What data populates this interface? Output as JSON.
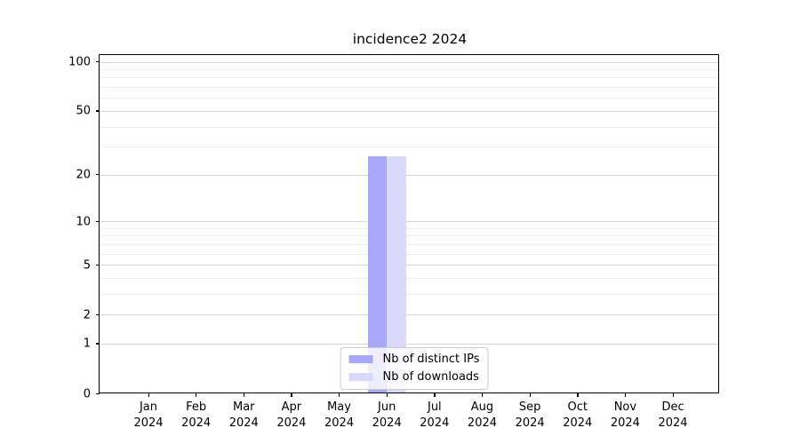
{
  "chart_data": {
    "type": "bar",
    "title": "incidence2 2024",
    "categories": [
      "Jan",
      "Feb",
      "Mar",
      "Apr",
      "May",
      "Jun",
      "Jul",
      "Aug",
      "Sep",
      "Oct",
      "Nov",
      "Dec"
    ],
    "category_year": "2024",
    "series": [
      {
        "name": "Nb of distinct IPs",
        "color": "#a8a8f8",
        "values": [
          0,
          0,
          0,
          0,
          0,
          26,
          0,
          0,
          0,
          0,
          0,
          0
        ]
      },
      {
        "name": "Nb of downloads",
        "color": "#d9d9fb",
        "values": [
          0,
          0,
          0,
          0,
          0,
          26,
          0,
          0,
          0,
          0,
          0,
          0
        ]
      }
    ],
    "xlabel": "",
    "ylabel": "",
    "yscale": "log1p",
    "ylim": [
      0,
      110
    ],
    "yticks": [
      0,
      1,
      2,
      5,
      10,
      20,
      50,
      100
    ],
    "minor_yticks": [
      3,
      4,
      6,
      7,
      8,
      9,
      30,
      40,
      60,
      70,
      80,
      90
    ],
    "grid": true,
    "legend_position": "lower center"
  },
  "colors": {
    "major_grid": "#d4d4d4",
    "minor_grid": "#ececec",
    "axis": "#000000",
    "text": "#000000",
    "legend_border": "#cccccc"
  }
}
